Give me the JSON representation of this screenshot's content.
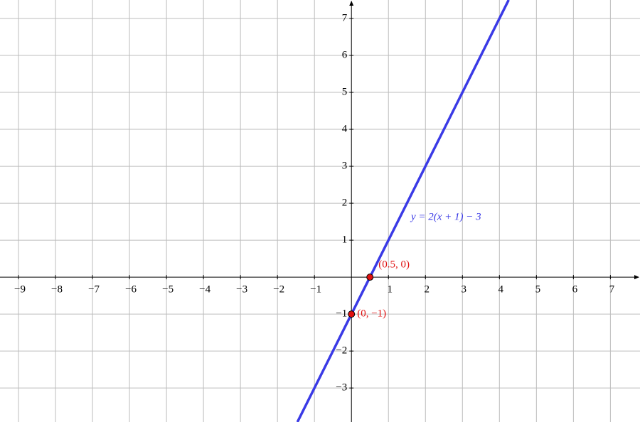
{
  "chart_data": {
    "type": "line",
    "series": [
      {
        "name": "y = 2(x + 1) − 3",
        "color": "#3a3ae6",
        "x": [
          -1.46,
          4.25
        ],
        "y": [
          -3.92,
          7.5
        ]
      }
    ],
    "points": [
      {
        "x": 0.5,
        "y": 0,
        "label": "(0.5, 0)",
        "color": "#e01010"
      },
      {
        "x": 0,
        "y": -1,
        "label": "(0, −1)",
        "color": "#e01010"
      }
    ],
    "xlim": [
      -9.5,
      7.8
    ],
    "ylim": [
      -3.92,
      7.5
    ],
    "xticks": [
      {
        "value": -9,
        "label": "−9"
      },
      {
        "value": -8,
        "label": "−8"
      },
      {
        "value": -7,
        "label": "−7"
      },
      {
        "value": -6,
        "label": "−6"
      },
      {
        "value": -5,
        "label": "−5"
      },
      {
        "value": -4,
        "label": "−4"
      },
      {
        "value": -3,
        "label": "−3"
      },
      {
        "value": -2,
        "label": "−2"
      },
      {
        "value": -1,
        "label": "−1"
      },
      1,
      2,
      3,
      4,
      5,
      6,
      7
    ],
    "yticks": [
      {
        "value": -3,
        "label": "−3"
      },
      {
        "value": -2,
        "label": "−2"
      },
      {
        "value": -1,
        "label": "−1"
      },
      1,
      2,
      3,
      4,
      5,
      6,
      7
    ],
    "grid": true
  }
}
